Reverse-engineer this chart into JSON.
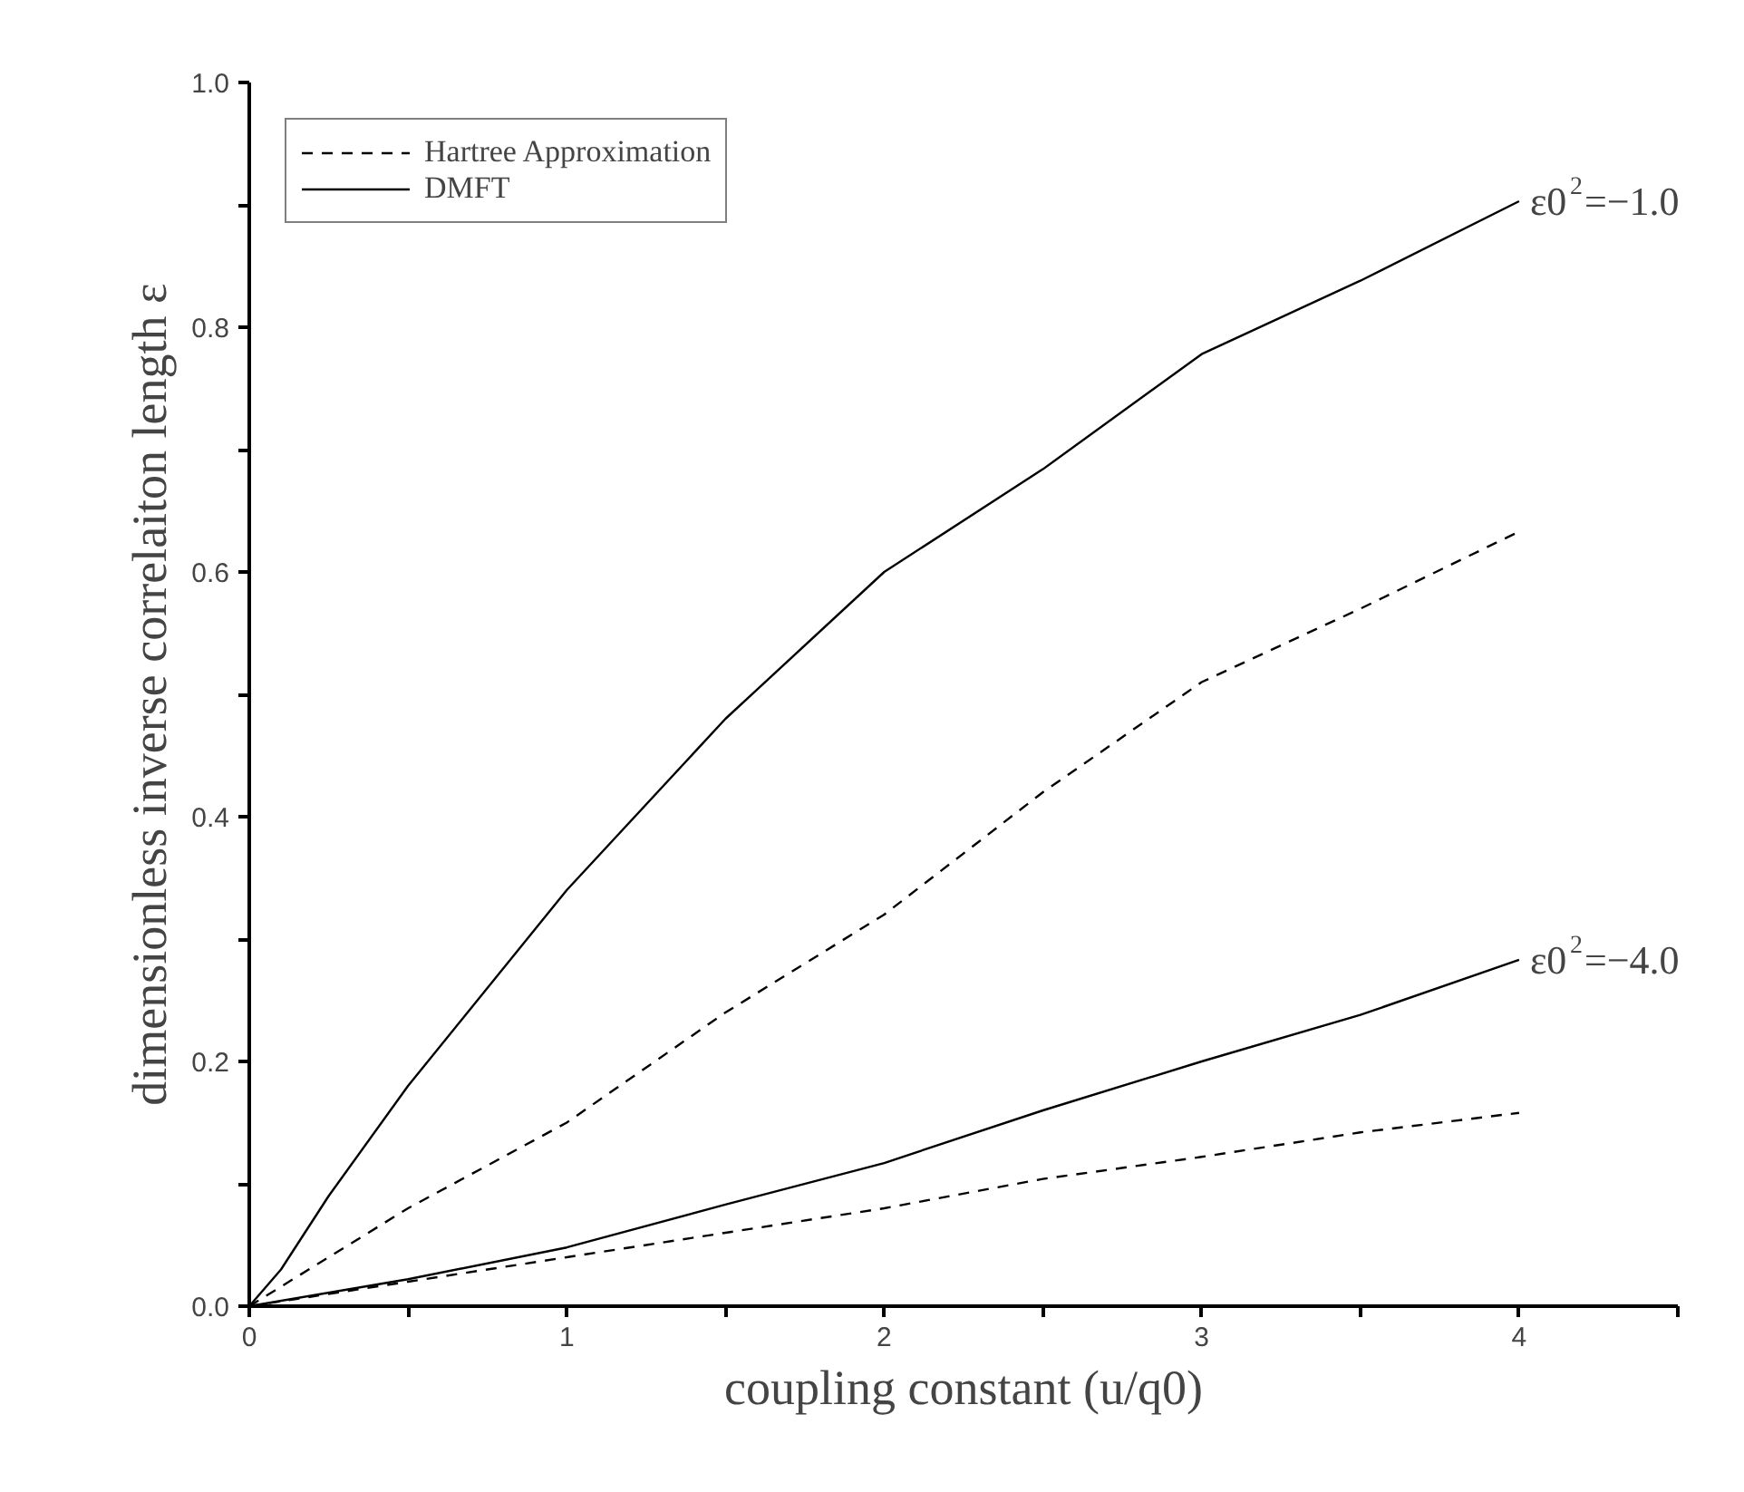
{
  "chart_data": {
    "type": "line",
    "xlabel": "coupling constant (u/q0)",
    "ylabel": "dimensionless inverse correlaiton length ε",
    "xlim": [
      0,
      4.5
    ],
    "ylim": [
      0,
      1.0
    ],
    "xticks": [
      0,
      {
        "value": 0.5,
        "label": null
      },
      1,
      {
        "value": 1.5,
        "label": null
      },
      2,
      {
        "value": 2.5,
        "label": null
      },
      3,
      {
        "value": 3.5,
        "label": null
      },
      4,
      {
        "value": 4.5,
        "label": null
      }
    ],
    "yticks": [
      {
        "value": 0,
        "label": "0.0"
      },
      {
        "value": 0.1,
        "label": null
      },
      0.2,
      {
        "value": 0.3,
        "label": null
      },
      0.4,
      {
        "value": 0.5,
        "label": null
      },
      0.6,
      {
        "value": 0.7,
        "label": null
      },
      0.8,
      {
        "value": 0.9,
        "label": null
      },
      {
        "value": 1.0,
        "label": "1.0"
      }
    ],
    "grid": false,
    "legend": "top left",
    "marker": "none",
    "series": [
      {
        "name": "Hartree Approximation",
        "color": "#000000",
        "line_style": "dashed",
        "x": [
          0,
          0.5,
          1,
          1.5,
          2,
          2.5,
          3,
          3.5,
          4
        ],
        "values": [
          0,
          0.08,
          0.15,
          0.24,
          0.32,
          0.42,
          0.51,
          0.57,
          0.633
        ]
      },
      {
        "name": "DMFT",
        "color": "#000000",
        "line_style": "solid",
        "x": [
          0,
          0.1,
          0.25,
          0.5,
          1,
          1.5,
          2,
          2.5,
          3,
          3.5,
          4
        ],
        "values": [
          0,
          0.03,
          0.09,
          0.18,
          0.34,
          0.48,
          0.6,
          0.684,
          0.778,
          0.838,
          0.903
        ]
      },
      {
        "color": "#000000",
        "line_style": "dashed",
        "x": [
          0,
          0.5,
          1,
          1.5,
          2,
          2.5,
          3,
          3.5,
          4
        ],
        "values": [
          0,
          0.02,
          0.04,
          0.06,
          0.08,
          0.104,
          0.122,
          0.142,
          0.158
        ]
      },
      {
        "color": "#000000",
        "line_style": "solid",
        "x": [
          0,
          0.5,
          1,
          1.5,
          2,
          2.5,
          3,
          3.5,
          4
        ],
        "values": [
          0,
          0.022,
          0.048,
          0.083,
          0.117,
          0.16,
          0.2,
          0.238,
          0.283
        ]
      }
    ],
    "annotations": [
      {
        "text": "ε0$^{2}$=−1.0",
        "x": 4,
        "y": 0.903
      },
      {
        "text": "ε0$^{2}$=−4.0",
        "x": 4,
        "y": 0.283
      }
    ]
  }
}
